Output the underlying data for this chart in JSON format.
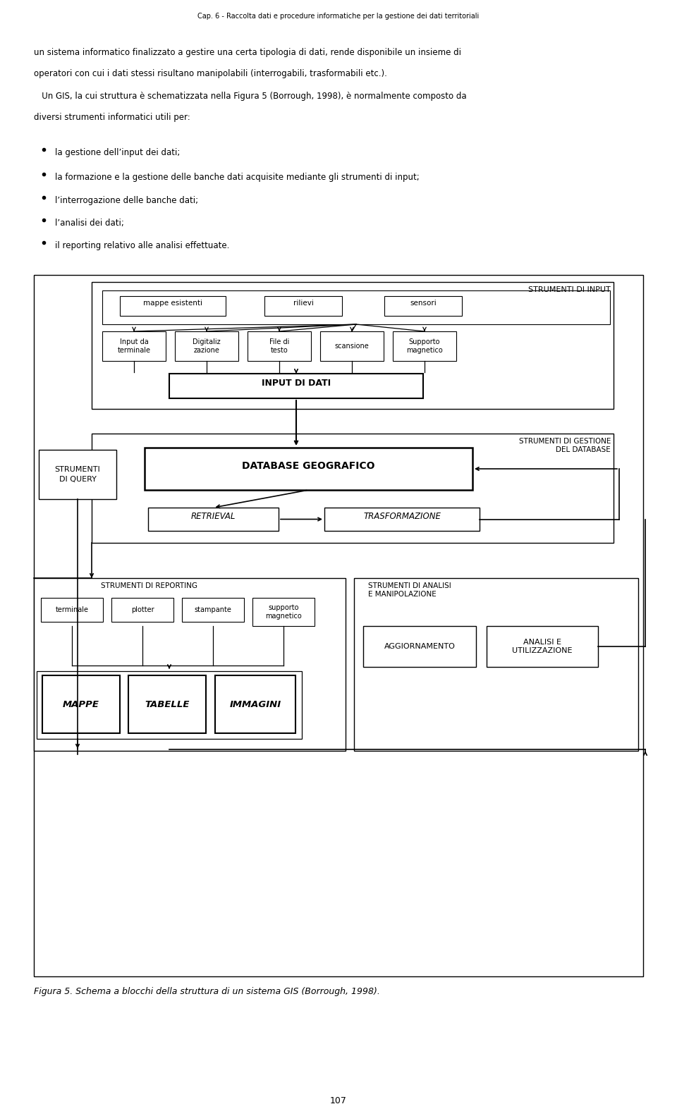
{
  "page_title": "Cap. 6 - Raccolta dati e procedure informatiche per la gestione dei dati territoriali",
  "body_text_lines": [
    "un sistema informatico finalizzato a gestire una certa tipologia di dati, rende disponibile un insieme di",
    "operatori con cui i dati stessi risultano manipolabili (interrogabili, trasformabili etc.).",
    "   Un GIS, la cui struttura è schematizzata nella Figura 5 (Borrough, 1998), è normalmente composto da",
    "diversi strumenti informatici utili per:"
  ],
  "bullet_items": [
    "la gestione dell’input dei dati;",
    "la formazione e la gestione delle banche dati acquisite mediante gli strumenti di input;",
    "l’interrogazione delle banche dati;",
    "l’analisi dei dati;",
    "il reporting relativo alle analisi effettuate."
  ],
  "caption": "Figura 5. Schema a blocchi della struttura di un sistema GIS (Borrough, 1998).",
  "page_number": "107",
  "bg_color": "#ffffff",
  "text_color": "#000000"
}
